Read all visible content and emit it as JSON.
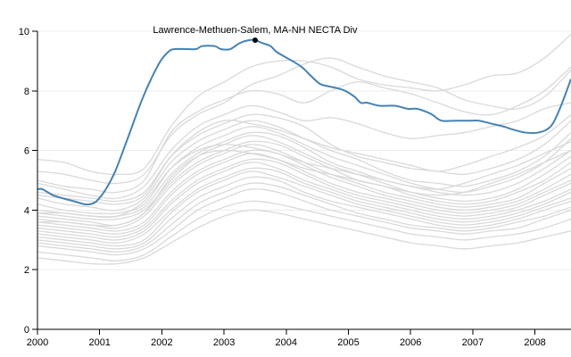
{
  "chart_data": {
    "type": "line",
    "title": "",
    "xlabel": "",
    "ylabel": "",
    "xlim": [
      2000,
      2008.58
    ],
    "ylim": [
      0,
      10
    ],
    "x_ticks": [
      "2000",
      "2001",
      "2002",
      "2003",
      "2004",
      "2005",
      "2006",
      "2007",
      "2008"
    ],
    "y_ticks": [
      "0",
      "2",
      "4",
      "6",
      "8",
      "10"
    ],
    "grid": true,
    "colors": {
      "highlight": "#4682b4",
      "background_series": "#d9d9d9",
      "grid": "#eeeeee"
    },
    "highlight": {
      "name": "Lawrence-Methuen-Salem, MA-NH NECTA Div",
      "label_x": 2003.5,
      "label_y": 9.7,
      "x": [
        2000.0,
        2000.08,
        2000.25,
        2000.4,
        2000.58,
        2000.75,
        2000.85,
        2000.95,
        2001.1,
        2001.25,
        2001.45,
        2001.7,
        2001.95,
        2002.1,
        2002.2,
        2002.4,
        2002.55,
        2002.65,
        2002.85,
        2002.95,
        2003.1,
        2003.25,
        2003.4,
        2003.5,
        2003.62,
        2003.75,
        2003.85,
        2004.1,
        2004.25,
        2004.35,
        2004.5,
        2004.58,
        2004.8,
        2004.95,
        2005.1,
        2005.2,
        2005.3,
        2005.5,
        2005.75,
        2005.95,
        2006.1,
        2006.25,
        2006.35,
        2006.5,
        2006.75,
        2006.95,
        2007.1,
        2007.3,
        2007.5,
        2007.65,
        2007.85,
        2008.05,
        2008.25,
        2008.4,
        2008.58
      ],
      "y": [
        4.7,
        4.7,
        4.5,
        4.4,
        4.3,
        4.2,
        4.2,
        4.3,
        4.7,
        5.3,
        6.4,
        7.8,
        8.9,
        9.3,
        9.4,
        9.4,
        9.4,
        9.5,
        9.5,
        9.4,
        9.4,
        9.6,
        9.7,
        9.7,
        9.6,
        9.5,
        9.3,
        9.0,
        8.8,
        8.6,
        8.3,
        8.2,
        8.1,
        8.0,
        7.8,
        7.6,
        7.6,
        7.5,
        7.5,
        7.4,
        7.4,
        7.3,
        7.2,
        7.0,
        7.0,
        7.0,
        7.0,
        6.9,
        6.8,
        6.7,
        6.6,
        6.6,
        6.8,
        7.4,
        8.4
      ]
    },
    "background_series": [
      {
        "y": [
          5.7,
          5.6,
          5.3,
          5.2,
          5.4,
          6.8,
          7.8,
          8.3,
          8.8,
          9.0,
          9.0,
          8.8,
          8.4,
          8.2,
          8.1,
          8.0,
          8.2,
          8.5,
          8.6,
          9.1,
          9.9
        ]
      },
      {
        "y": [
          5.3,
          5.2,
          5.0,
          4.9,
          5.2,
          6.5,
          7.2,
          7.6,
          8.2,
          8.5,
          8.9,
          9.1,
          8.8,
          8.5,
          8.3,
          8.1,
          7.7,
          7.5,
          7.4,
          7.8,
          8.7
        ]
      },
      {
        "y": [
          5.0,
          4.8,
          4.7,
          4.6,
          5.0,
          6.6,
          7.3,
          7.7,
          8.0,
          7.9,
          7.6,
          8.0,
          8.3,
          8.1,
          7.9,
          7.6,
          7.3,
          7.2,
          7.5,
          8.0,
          8.8
        ]
      },
      {
        "y": [
          4.9,
          4.7,
          4.5,
          4.4,
          4.8,
          6.0,
          6.8,
          7.2,
          7.5,
          7.3,
          7.0,
          7.1,
          6.9,
          6.6,
          6.4,
          6.5,
          6.6,
          6.8,
          7.0,
          7.4,
          7.6
        ]
      },
      {
        "y": [
          4.6,
          4.5,
          4.4,
          4.3,
          4.6,
          5.8,
          6.5,
          6.9,
          7.2,
          7.1,
          6.8,
          6.2,
          5.8,
          5.6,
          5.4,
          5.3,
          5.2,
          5.4,
          5.7,
          6.2,
          7.0
        ]
      },
      {
        "y": [
          4.4,
          4.2,
          4.1,
          4.0,
          4.4,
          5.6,
          6.3,
          6.7,
          7.0,
          6.8,
          6.4,
          6.0,
          5.7,
          5.3,
          5.0,
          4.9,
          4.8,
          5.0,
          5.3,
          5.8,
          6.6
        ]
      },
      {
        "y": [
          4.2,
          4.0,
          3.9,
          3.9,
          4.2,
          5.4,
          6.1,
          6.5,
          6.8,
          6.6,
          6.2,
          5.8,
          5.5,
          5.2,
          4.9,
          4.7,
          4.6,
          4.8,
          5.1,
          5.6,
          6.4
        ]
      },
      {
        "y": [
          4.0,
          3.9,
          3.8,
          3.8,
          4.1,
          5.2,
          5.9,
          6.3,
          6.6,
          6.5,
          6.1,
          5.6,
          5.3,
          5.0,
          4.8,
          4.6,
          4.5,
          4.6,
          4.9,
          5.4,
          6.0
        ]
      },
      {
        "y": [
          3.9,
          3.8,
          3.7,
          3.7,
          4.0,
          5.0,
          5.8,
          6.2,
          6.5,
          6.3,
          5.9,
          5.5,
          5.2,
          4.9,
          4.6,
          4.4,
          4.3,
          4.4,
          4.7,
          5.2,
          5.8
        ]
      },
      {
        "y": [
          3.8,
          3.7,
          3.6,
          3.5,
          3.9,
          4.9,
          5.6,
          6.0,
          6.3,
          6.2,
          5.8,
          5.4,
          5.0,
          4.8,
          4.5,
          4.3,
          4.2,
          4.3,
          4.6,
          5.0,
          5.6
        ]
      },
      {
        "y": [
          3.7,
          3.6,
          3.5,
          3.4,
          3.8,
          4.8,
          5.5,
          5.9,
          6.2,
          6.0,
          5.6,
          5.2,
          4.9,
          4.6,
          4.4,
          4.2,
          4.1,
          4.2,
          4.4,
          4.9,
          5.4
        ]
      },
      {
        "y": [
          3.6,
          3.5,
          3.4,
          3.3,
          3.6,
          4.6,
          5.3,
          5.7,
          6.0,
          5.9,
          5.5,
          5.1,
          4.8,
          4.5,
          4.3,
          4.1,
          4.0,
          4.1,
          4.3,
          4.7,
          5.2
        ]
      },
      {
        "y": [
          3.5,
          3.4,
          3.3,
          3.2,
          3.5,
          4.5,
          5.2,
          5.6,
          5.9,
          5.7,
          5.3,
          4.9,
          4.6,
          4.4,
          4.2,
          4.0,
          3.9,
          4.0,
          4.2,
          4.6,
          5.0
        ]
      },
      {
        "y": [
          3.4,
          3.3,
          3.2,
          3.1,
          3.4,
          4.3,
          5.0,
          5.4,
          5.7,
          5.6,
          5.2,
          4.8,
          4.5,
          4.3,
          4.1,
          3.9,
          3.8,
          3.9,
          4.1,
          4.5,
          4.9
        ]
      },
      {
        "y": [
          3.3,
          3.2,
          3.1,
          3.0,
          3.3,
          4.2,
          4.9,
          5.3,
          5.6,
          5.4,
          5.0,
          4.7,
          4.4,
          4.2,
          4.0,
          3.8,
          3.7,
          3.8,
          4.0,
          4.3,
          4.7
        ]
      },
      {
        "y": [
          3.2,
          3.1,
          3.0,
          2.9,
          3.2,
          4.0,
          4.7,
          5.1,
          5.4,
          5.3,
          4.9,
          4.6,
          4.3,
          4.1,
          3.9,
          3.7,
          3.6,
          3.7,
          3.9,
          4.2,
          4.6
        ]
      },
      {
        "y": [
          3.1,
          3.0,
          2.9,
          2.8,
          3.0,
          3.9,
          4.6,
          5.0,
          5.3,
          5.1,
          4.8,
          4.5,
          4.2,
          4.0,
          3.8,
          3.6,
          3.5,
          3.6,
          3.8,
          4.1,
          4.4
        ]
      },
      {
        "y": [
          3.0,
          2.9,
          2.8,
          2.7,
          2.9,
          3.7,
          4.4,
          4.8,
          5.1,
          5.0,
          4.6,
          4.3,
          4.1,
          3.9,
          3.7,
          3.5,
          3.4,
          3.5,
          3.7,
          4.0,
          4.3
        ]
      },
      {
        "y": [
          2.9,
          2.8,
          2.7,
          2.6,
          2.8,
          3.5,
          4.2,
          4.6,
          4.9,
          4.8,
          4.5,
          4.2,
          3.9,
          3.7,
          3.5,
          3.4,
          3.3,
          3.4,
          3.6,
          3.8,
          4.1
        ]
      },
      {
        "y": [
          2.8,
          2.7,
          2.6,
          2.5,
          2.7,
          3.3,
          4.0,
          4.4,
          4.7,
          4.6,
          4.3,
          4.0,
          3.8,
          3.6,
          3.4,
          3.3,
          3.2,
          3.3,
          3.4,
          3.7,
          4.0
        ]
      },
      {
        "y": [
          2.6,
          2.5,
          2.4,
          2.3,
          2.5,
          3.1,
          3.7,
          4.1,
          4.3,
          4.2,
          4.0,
          3.8,
          3.6,
          3.4,
          3.2,
          3.1,
          3.0,
          3.1,
          3.2,
          3.4,
          3.7
        ]
      },
      {
        "y": [
          2.4,
          2.3,
          2.2,
          2.2,
          2.4,
          2.9,
          3.4,
          3.8,
          4.0,
          3.9,
          3.7,
          3.5,
          3.3,
          3.1,
          2.9,
          2.8,
          2.7,
          2.8,
          2.9,
          3.1,
          3.3
        ]
      },
      {
        "y": [
          4.5,
          4.4,
          4.3,
          4.2,
          4.5,
          5.8,
          6.6,
          7.0,
          6.9,
          6.7,
          6.4,
          6.1,
          5.9,
          5.7,
          5.5,
          5.3,
          5.5,
          5.8,
          6.1,
          6.5,
          7.2
        ]
      },
      {
        "y": [
          3.9,
          3.9,
          3.8,
          3.8,
          4.3,
          5.4,
          6.0,
          6.2,
          6.1,
          5.9,
          5.6,
          5.4,
          5.2,
          5.0,
          4.8,
          4.7,
          4.9,
          5.2,
          5.5,
          5.9,
          6.3
        ]
      },
      {
        "y": [
          3.6,
          3.6,
          3.5,
          3.5,
          3.9,
          5.1,
          5.8,
          6.0,
          5.9,
          5.7,
          5.4,
          5.2,
          5.0,
          4.8,
          4.6,
          4.5,
          4.6,
          4.9,
          5.2,
          5.6,
          6.0
        ]
      }
    ]
  }
}
